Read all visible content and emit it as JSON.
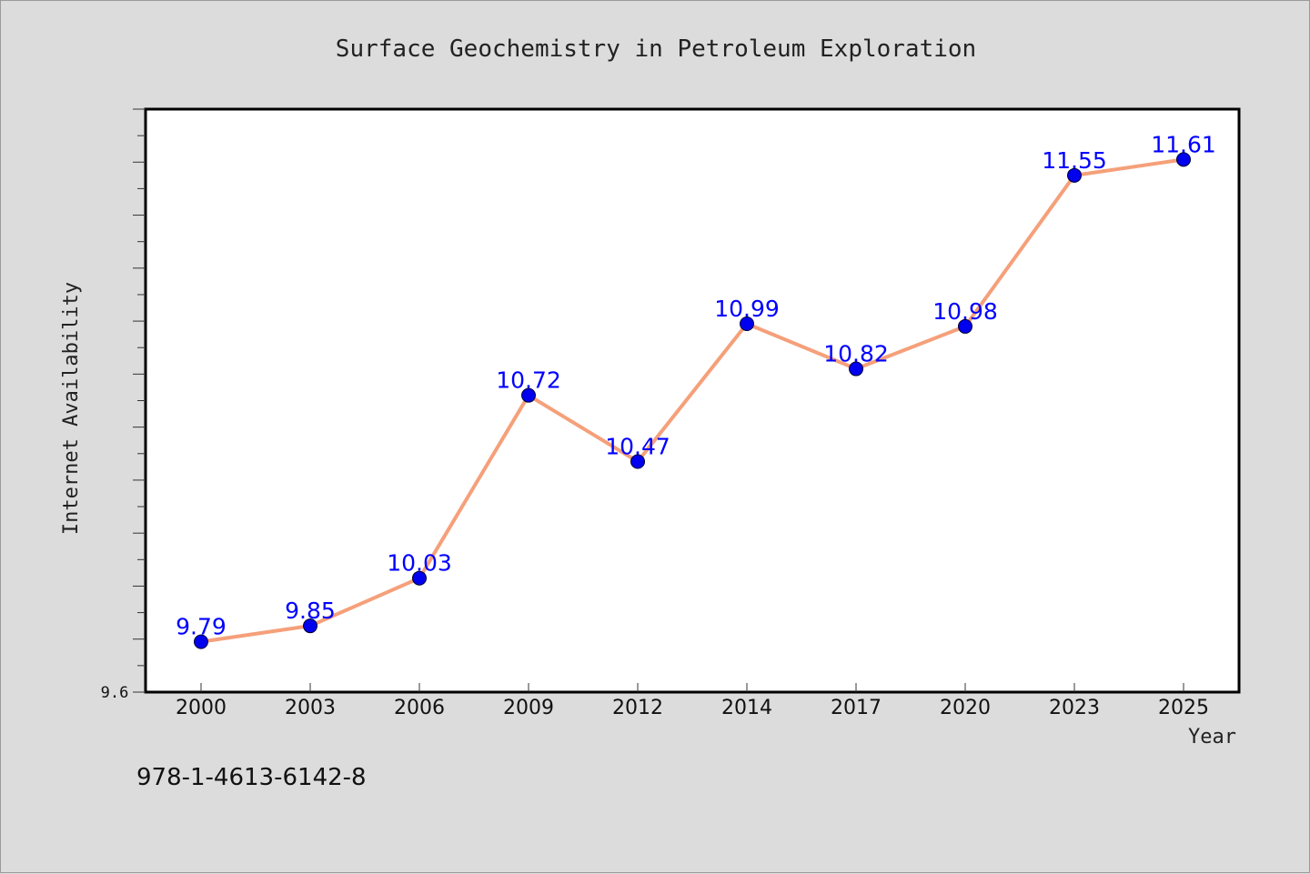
{
  "chart_data": {
    "type": "line",
    "title": "Surface Geochemistry in Petroleum Exploration",
    "xlabel": "Year",
    "ylabel": "Internet Availability",
    "categories": [
      "2000",
      "2003",
      "2006",
      "2009",
      "2012",
      "2014",
      "2017",
      "2020",
      "2023",
      "2025"
    ],
    "series": [
      {
        "values": [
          9.79,
          9.85,
          10.03,
          10.72,
          10.47,
          10.99,
          10.82,
          10.98,
          11.55,
          11.61
        ],
        "labels": [
          "9.79",
          "9.85",
          "10.03",
          "10.72",
          "10.47",
          "10.99",
          "10.82",
          "10.98",
          "11.55",
          "11.61"
        ],
        "line_color": "#f5a07a",
        "marker_color": "#0000ee"
      }
    ],
    "ylim": [
      9.6,
      11.8
    ],
    "y_ticks": [
      "9.6"
    ],
    "grid": false,
    "legend": "none"
  },
  "footnote": "978-1-4613-6142-8",
  "colors": {
    "background": "#dcdcdc",
    "plot_background": "#ffffff",
    "data_label": "#0000ff"
  }
}
